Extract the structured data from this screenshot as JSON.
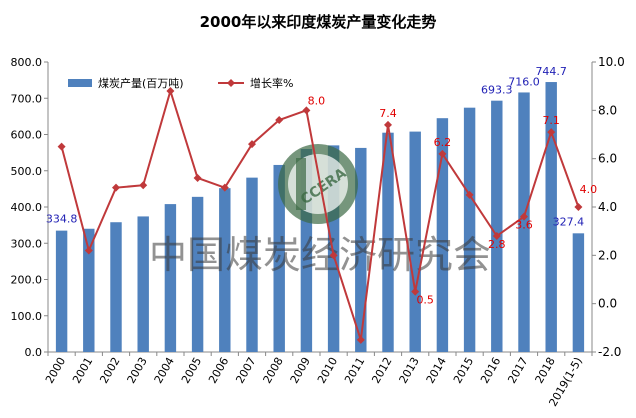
{
  "chart_data": {
    "type": "bar+line",
    "title": "2000年以来印度煤炭产量变化走势",
    "categories": [
      "2000",
      "2001",
      "2002",
      "2003",
      "2004",
      "2005",
      "2006",
      "2007",
      "2008",
      "2009",
      "2010",
      "2011",
      "2012",
      "2013",
      "2014",
      "2015",
      "2016",
      "2017",
      "2018",
      "2019(1-5)"
    ],
    "series": [
      {
        "name": "煤炭产量(百万吨)",
        "type": "bar",
        "axis": "left",
        "color": "#4f81bd",
        "values": [
          334.8,
          340,
          358,
          374,
          408,
          428,
          452,
          481,
          516,
          560,
          570,
          563,
          605,
          608,
          645,
          674,
          693.3,
          716.0,
          744.7,
          327.4
        ]
      },
      {
        "name": "增长率%",
        "type": "line",
        "axis": "right",
        "color": "#c0393b",
        "values": [
          6.5,
          2.2,
          4.8,
          4.9,
          8.8,
          5.2,
          4.8,
          6.6,
          7.6,
          8.0,
          2.0,
          -1.5,
          7.4,
          0.5,
          6.2,
          4.5,
          2.8,
          3.6,
          7.1,
          4.0
        ]
      }
    ],
    "y_left": {
      "min": 0,
      "max": 800,
      "step": 100,
      "tick_labels": [
        "0.0",
        "100.0",
        "200.0",
        "300.0",
        "400.0",
        "500.0",
        "600.0",
        "700.0",
        "800.0"
      ]
    },
    "y_right": {
      "min": -2,
      "max": 10,
      "step": 2,
      "tick_labels": [
        "-2.0",
        "0.0",
        "2.0",
        "4.0",
        "6.0",
        "8.0",
        "10.0"
      ]
    },
    "bar_labels": [
      {
        "index": 0,
        "text": "334.8",
        "color": "#1f1fb4"
      },
      {
        "index": 16,
        "text": "693.3",
        "color": "#1f1fb4"
      },
      {
        "index": 17,
        "text": "716.0",
        "color": "#1f1fb4"
      },
      {
        "index": 18,
        "text": "744.7",
        "color": "#1f1fb4"
      },
      {
        "index": 19,
        "text": "327.4",
        "color": "#1f1fb4"
      }
    ],
    "line_labels": [
      {
        "index": 9,
        "text": "8.0",
        "color": "#e00000"
      },
      {
        "index": 12,
        "text": "7.4",
        "color": "#e00000"
      },
      {
        "index": 13,
        "text": "0.5",
        "color": "#e00000"
      },
      {
        "index": 14,
        "text": "6.2",
        "color": "#e00000"
      },
      {
        "index": 16,
        "text": "2.8",
        "color": "#e00000"
      },
      {
        "index": 17,
        "text": "3.6",
        "color": "#e00000"
      },
      {
        "index": 18,
        "text": "7.1",
        "color": "#e00000"
      },
      {
        "index": 19,
        "text": "4.0",
        "color": "#e00000"
      }
    ],
    "legend": {
      "placement": "top-left"
    },
    "grid": false
  },
  "watermark": {
    "text": "中国煤炭经济研究会",
    "logo_text": "CCERA"
  }
}
